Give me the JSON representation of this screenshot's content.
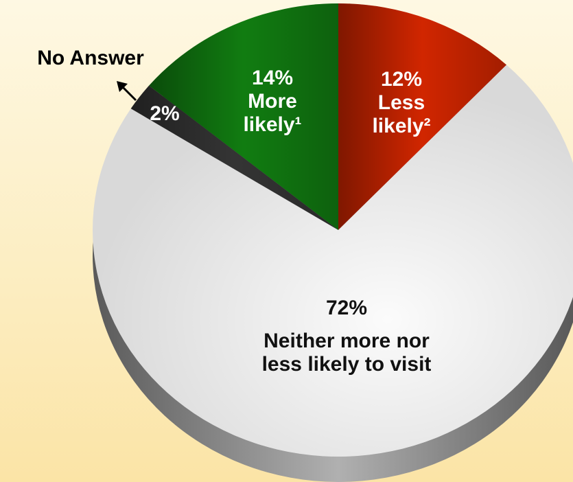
{
  "chart_data": {
    "type": "pie",
    "categories": [
      "Less likely²",
      "Neither more nor less likely to visit",
      "No Answer",
      "More likely¹"
    ],
    "values": [
      12,
      72,
      2,
      14
    ],
    "value_labels": [
      "12%",
      "72%",
      "2%",
      "14%"
    ],
    "colors": [
      "#e82a00",
      "#d9d9d9",
      "#3a3a3a",
      "#138a13"
    ]
  }
}
